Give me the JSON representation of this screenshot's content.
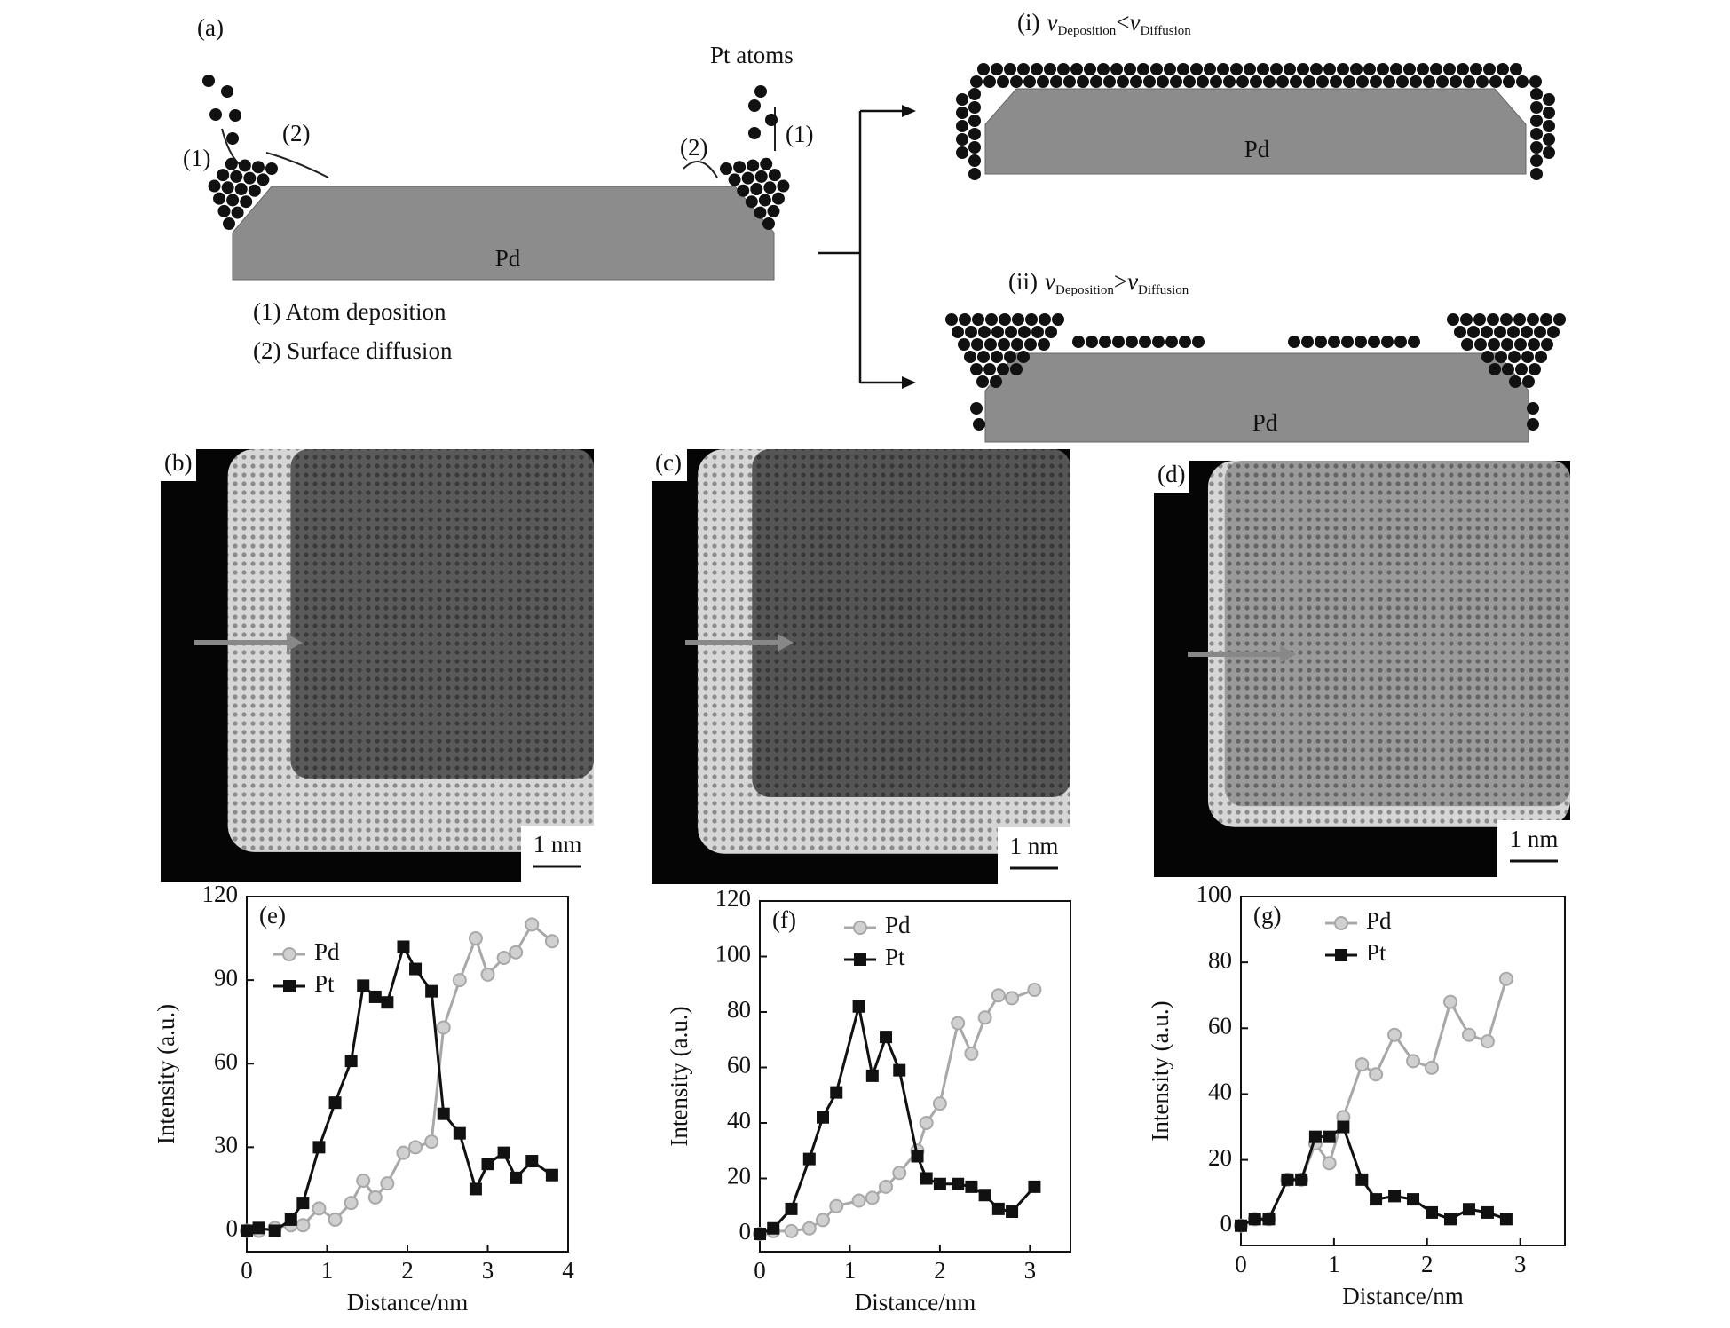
{
  "figure": {
    "panel_a": {
      "label": "(a)",
      "pt_atoms": "Pt atoms",
      "step1": "(1)",
      "step2": "(2)",
      "pd": "Pd",
      "legend": [
        "(1) Atom deposition",
        "(2) Surface diffusion"
      ],
      "case_i": {
        "label": "(i)",
        "symbol": "v",
        "sub_left": "Deposition",
        "relation": "<",
        "sub_right": "Diffusion",
        "pd": "Pd"
      },
      "case_ii": {
        "label": "(ii)",
        "symbol": "v",
        "sub_left": "Deposition",
        "relation": ">",
        "sub_right": "Diffusion",
        "pd": "Pd"
      }
    },
    "images": [
      {
        "label": "(b)",
        "scale_bar": "1 nm"
      },
      {
        "label": "(c)",
        "scale_bar": "1 nm"
      },
      {
        "label": "(d)",
        "scale_bar": "1 nm"
      }
    ]
  },
  "chart_data": [
    {
      "type": "line",
      "panel": "(e)",
      "xlabel": "Distance/nm",
      "ylabel": "Intensity (a.u.)",
      "x": [
        0,
        0.15,
        0.35,
        0.55,
        0.7,
        0.9,
        1.1,
        1.3,
        1.45,
        1.6,
        1.75,
        1.95,
        2.1,
        2.3,
        2.45,
        2.65,
        2.85,
        3.0,
        3.2,
        3.35,
        3.55,
        3.8
      ],
      "series": [
        {
          "name": "Pd",
          "color": "#a8a8a8",
          "marker": "circle",
          "values": [
            0,
            0,
            1,
            2,
            2,
            8,
            4,
            10,
            18,
            12,
            17,
            28,
            30,
            32,
            73,
            90,
            105,
            92,
            98,
            100,
            110,
            104
          ]
        },
        {
          "name": "Pt",
          "color": "#111111",
          "marker": "square",
          "values": [
            0,
            1,
            0,
            4,
            10,
            30,
            46,
            61,
            88,
            84,
            82,
            102,
            94,
            86,
            42,
            35,
            15,
            24,
            28,
            19,
            25,
            20
          ]
        }
      ],
      "xlim": [
        0,
        4
      ],
      "xticks": [
        0,
        1,
        2,
        3,
        4
      ],
      "ylim": [
        -7.5,
        120
      ],
      "yticks": [
        0,
        30,
        60,
        90,
        120
      ]
    },
    {
      "type": "line",
      "panel": "(f)",
      "xlabel": "Distance/nm",
      "ylabel": "Intensity (a.u.)",
      "x": [
        0,
        0.15,
        0.35,
        0.55,
        0.7,
        0.85,
        1.1,
        1.25,
        1.4,
        1.55,
        1.75,
        1.85,
        2.0,
        2.2,
        2.35,
        2.5,
        2.65,
        2.8,
        3.05
      ],
      "series": [
        {
          "name": "Pd",
          "color": "#a8a8a8",
          "marker": "circle",
          "values": [
            0,
            1,
            1,
            2,
            5,
            10,
            12,
            13,
            17,
            22,
            30,
            40,
            47,
            76,
            65,
            78,
            86,
            85,
            88
          ]
        },
        {
          "name": "Pt",
          "color": "#111111",
          "marker": "square",
          "values": [
            0,
            2,
            9,
            27,
            42,
            51,
            82,
            57,
            71,
            59,
            28,
            20,
            18,
            18,
            17,
            14,
            9,
            8,
            17
          ]
        }
      ],
      "xlim": [
        0,
        3.45
      ],
      "xticks": [
        0,
        1,
        2,
        3
      ],
      "ylim": [
        -6.4,
        120
      ],
      "yticks": [
        0,
        20,
        40,
        60,
        80,
        100,
        120
      ]
    },
    {
      "type": "line",
      "panel": "(g)",
      "xlabel": "Distance/nm",
      "ylabel": "Intensity (a.u.)",
      "x": [
        0,
        0.15,
        0.3,
        0.5,
        0.65,
        0.8,
        0.95,
        1.1,
        1.3,
        1.45,
        1.65,
        1.85,
        2.05,
        2.25,
        2.45,
        2.65,
        2.85
      ],
      "series": [
        {
          "name": "Pd",
          "color": "#a8a8a8",
          "marker": "circle",
          "values": [
            0,
            2,
            2,
            14,
            14,
            25,
            19,
            33,
            49,
            46,
            58,
            50,
            48,
            68,
            58,
            56,
            75
          ]
        },
        {
          "name": "Pt",
          "color": "#111111",
          "marker": "square",
          "values": [
            0,
            2,
            2,
            14,
            14,
            27,
            27,
            30,
            14,
            8,
            9,
            8,
            4,
            2,
            5,
            4,
            2
          ]
        }
      ],
      "xlim": [
        0,
        3.48
      ],
      "xticks": [
        0,
        1,
        2,
        3
      ],
      "ylim": [
        -6,
        100
      ],
      "yticks": [
        0,
        20,
        40,
        60,
        80,
        100
      ]
    }
  ]
}
